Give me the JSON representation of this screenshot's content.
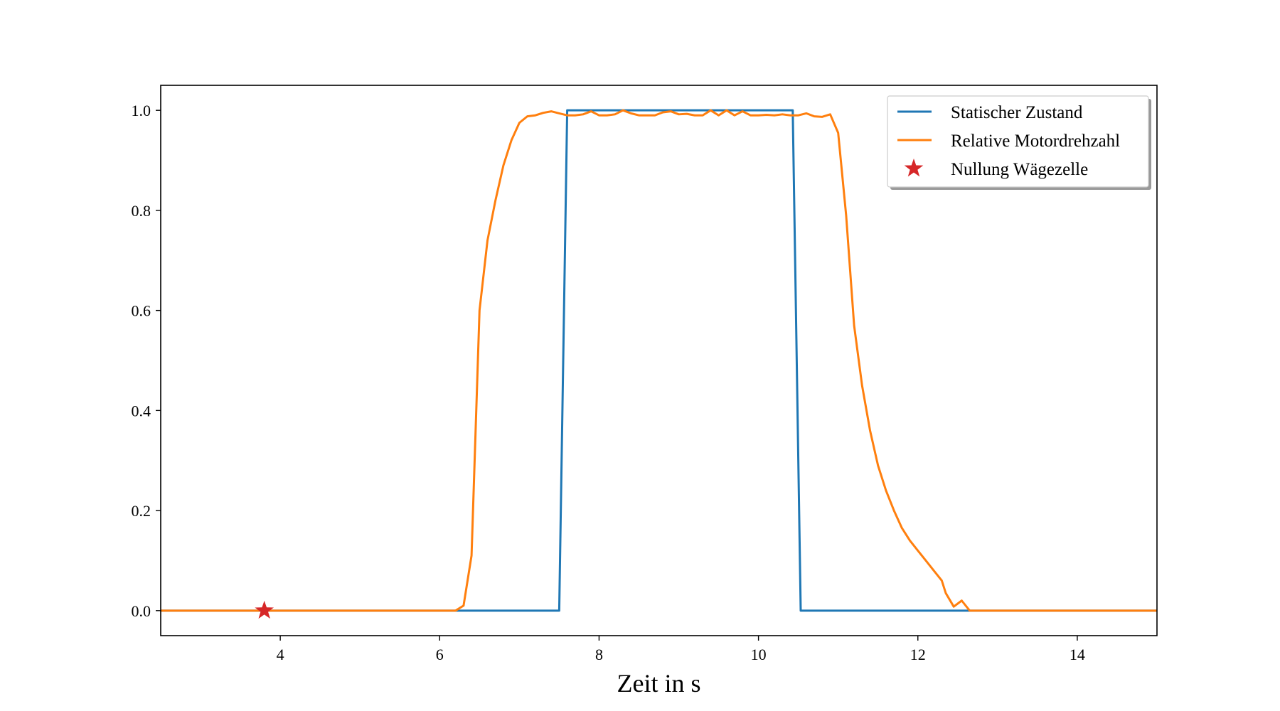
{
  "chart_data": {
    "type": "line",
    "title": "",
    "xlabel": "Zeit in s",
    "ylabel": "",
    "xlim": [
      2.5,
      15.0
    ],
    "ylim": [
      -0.05,
      1.05
    ],
    "xticks": [
      4,
      6,
      8,
      10,
      12,
      14
    ],
    "yticks": [
      0.0,
      0.2,
      0.4,
      0.6,
      0.8,
      1.0
    ],
    "xtick_labels": [
      "4",
      "6",
      "8",
      "10",
      "12",
      "14"
    ],
    "ytick_labels": [
      "0.0",
      "0.2",
      "0.4",
      "0.6",
      "0.8",
      "1.0"
    ],
    "grid": false,
    "legend_position": "top-right",
    "series": [
      {
        "name": "Statischer Zustand",
        "color": "#1f77b4",
        "marker": "none",
        "x": [
          2.5,
          6.1,
          6.2,
          7.5,
          7.6,
          10.43,
          10.53,
          12.7,
          12.8,
          15.0
        ],
        "y": [
          0,
          0,
          0,
          0,
          1,
          1,
          0,
          0,
          0,
          0
        ]
      },
      {
        "name": "Relative Motordrehzahl",
        "color": "#ff7f0e",
        "marker": "none",
        "x": [
          2.5,
          6.1,
          6.2,
          6.3,
          6.4,
          6.5,
          6.6,
          6.7,
          6.8,
          6.9,
          7.0,
          7.1,
          7.2,
          7.3,
          7.4,
          7.5,
          7.6,
          7.7,
          7.8,
          7.9,
          8.0,
          8.1,
          8.2,
          8.3,
          8.4,
          8.5,
          8.6,
          8.7,
          8.8,
          8.9,
          9.0,
          9.1,
          9.2,
          9.3,
          9.4,
          9.5,
          9.6,
          9.7,
          9.8,
          9.9,
          10.0,
          10.1,
          10.2,
          10.3,
          10.4,
          10.5,
          10.6,
          10.7,
          10.8,
          10.9,
          11.0,
          11.1,
          11.2,
          11.3,
          11.4,
          11.5,
          11.6,
          11.7,
          11.8,
          11.9,
          12.0,
          12.1,
          12.2,
          12.3,
          12.35,
          12.45,
          12.55,
          12.65,
          12.75,
          12.85,
          15.0
        ],
        "y": [
          0,
          0,
          0,
          0.01,
          0.11,
          0.6,
          0.74,
          0.82,
          0.89,
          0.94,
          0.975,
          0.988,
          0.99,
          0.995,
          0.998,
          0.994,
          0.99,
          0.99,
          0.992,
          0.998,
          0.99,
          0.99,
          0.992,
          1.0,
          0.994,
          0.99,
          0.99,
          0.99,
          0.996,
          0.998,
          0.992,
          0.993,
          0.99,
          0.99,
          1.0,
          0.99,
          1.0,
          0.99,
          0.998,
          0.99,
          0.99,
          0.991,
          0.99,
          0.992,
          0.99,
          0.99,
          0.994,
          0.988,
          0.987,
          0.992,
          0.955,
          0.79,
          0.57,
          0.45,
          0.36,
          0.29,
          0.24,
          0.2,
          0.165,
          0.14,
          0.12,
          0.1,
          0.08,
          0.06,
          0.035,
          0.008,
          0.02,
          0.0,
          0.0,
          0.0,
          0.0
        ]
      },
      {
        "name": "Nullung Wägezelle",
        "color": "#d62728",
        "marker": "star",
        "x": [
          3.8
        ],
        "y": [
          0.0
        ]
      }
    ]
  }
}
